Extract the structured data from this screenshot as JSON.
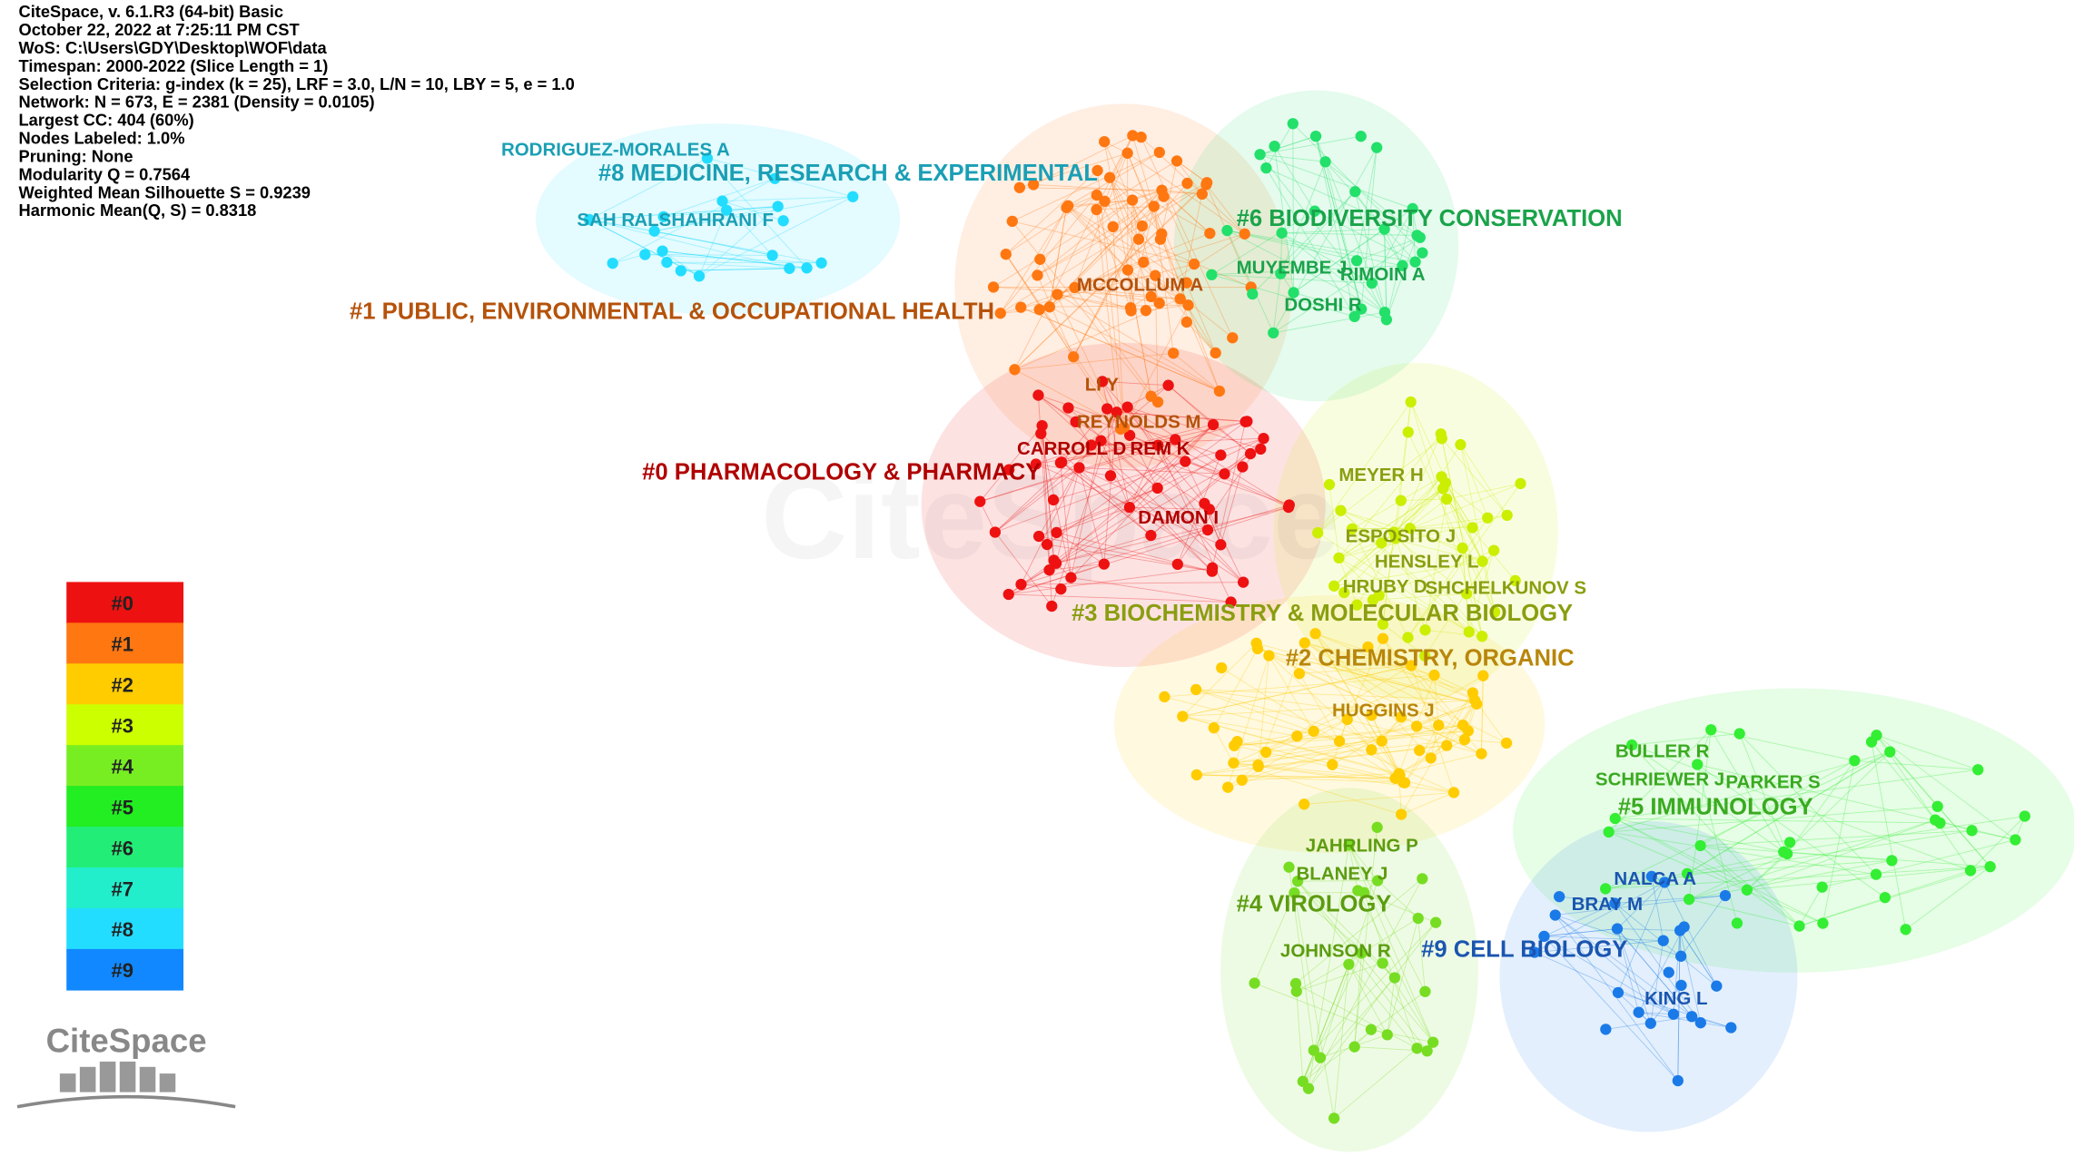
{
  "header": [
    "CiteSpace, v. 6.1.R3 (64-bit) Basic",
    "October 22, 2022 at 7:25:11 PM CST",
    "WoS: C:\\Users\\GDY\\Desktop\\WOF\\data",
    "Timespan: 2000-2022 (Slice Length = 1)",
    "Selection Criteria: g-index (k = 25), LRF = 3.0, L/N = 10, LBY = 5, e = 1.0",
    "Network: N = 673, E = 2381 (Density = 0.0105)",
    "Largest CC: 404 (60%)",
    "Nodes Labeled: 1.0%",
    "Pruning: None",
    "Modularity Q = 0.7564",
    "Weighted Mean Silhouette S = 0.9239",
    "Harmonic Mean(Q, S) = 0.8318"
  ],
  "clusters": [
    {
      "label": "#0 PHARMACOLOGY & PHARMACY",
      "text_color": "#b00000",
      "node_color": "#ee1111",
      "authors": [
        "CARROLL D",
        "REM K",
        "DAMON I"
      ]
    },
    {
      "label": "#1 PUBLIC, ENVIRONMENTAL & OCCUPATIONAL HEALTH",
      "text_color": "#b5520a",
      "node_color": "#ff7711",
      "authors": [
        "MCCOLLUM A",
        "LI Y",
        "REYNOLDS M"
      ]
    },
    {
      "label": "#2 CHEMISTRY, ORGANIC",
      "text_color": "#b8860b",
      "node_color": "#ffcc00",
      "authors": [
        "HUGGINS J"
      ]
    },
    {
      "label": "#3 BIOCHEMISTRY & MOLECULAR BIOLOGY",
      "text_color": "#8a9e10",
      "node_color": "#ccee00",
      "authors": [
        "MEYER H",
        "ESPOSITO J",
        "HENSLEY L",
        "HRUBY D",
        "SHCHELKUNOV S"
      ]
    },
    {
      "label": "#4 VIROLOGY",
      "text_color": "#5c9c10",
      "node_color": "#77dd22",
      "authors": [
        "JAHRLING P",
        "BLANEY J",
        "JOHNSON R"
      ]
    },
    {
      "label": "#5 IMMUNOLOGY",
      "text_color": "#3aaa20",
      "node_color": "#33ee33",
      "authors": [
        "BULLER R",
        "SCHRIEWER J",
        "PARKER S"
      ]
    },
    {
      "label": "#6 BIODIVERSITY CONSERVATION",
      "text_color": "#1aa34a",
      "node_color": "#22e06a",
      "authors": [
        "MUYEMBE J",
        "RIMOIN A",
        "DOSHI R"
      ]
    },
    {
      "label": "#8 MEDICINE, RESEARCH & EXPERIMENTAL",
      "text_color": "#1a9fb5",
      "node_color": "#22ddff",
      "authors": [
        "RODRIGUEZ-MORALES A",
        "SAH R",
        "ALSHAHRANI F"
      ]
    },
    {
      "label": "#9 CELL BIOLOGY",
      "text_color": "#1a55b0",
      "node_color": "#1a7ae8",
      "authors": []
    }
  ],
  "legend": [
    {
      "label": "#0",
      "color": "#ee1111"
    },
    {
      "label": "#1",
      "color": "#ff7711"
    },
    {
      "label": "#2",
      "color": "#ffcc00"
    },
    {
      "label": "#3",
      "color": "#ccff00"
    },
    {
      "label": "#4",
      "color": "#77ee22"
    },
    {
      "label": "#5",
      "color": "#22ee22"
    },
    {
      "label": "#6",
      "color": "#22ee77"
    },
    {
      "label": "#7",
      "color": "#22eecc"
    },
    {
      "label": "#8",
      "color": "#22ddff"
    },
    {
      "label": "#9",
      "color": "#1188ff"
    }
  ],
  "extra_authors": {
    "cluster9": [
      "NALCA A",
      "BRAY M",
      "KING L"
    ]
  },
  "logo": "CiteSpace",
  "watermark": "CiteSpace"
}
